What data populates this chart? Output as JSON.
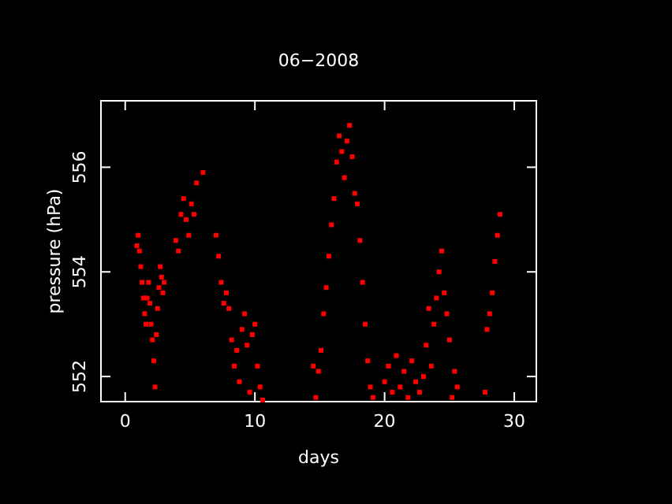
{
  "chart_data": {
    "type": "scatter",
    "title": "06−2008",
    "xlabel": "days",
    "ylabel": "pressure (hPa)",
    "xlim": [
      -1.87,
      31.7
    ],
    "ylim": [
      551.52,
      557.27
    ],
    "xticks": [
      0,
      10,
      20,
      30
    ],
    "yticks": [
      552,
      554,
      556
    ],
    "marker": "square",
    "grid": false,
    "series": [
      {
        "color": "#ff0000",
        "x": [
          0.9,
          1.0,
          1.1,
          1.2,
          1.3,
          1.4,
          1.5,
          1.6,
          1.7,
          1.8,
          1.9,
          2.0,
          2.1,
          2.2,
          2.3,
          2.4,
          2.5,
          2.6,
          2.7,
          2.8,
          2.9,
          3.0,
          3.9,
          4.1,
          4.3,
          4.5,
          4.7,
          4.9,
          5.1,
          5.3,
          5.5,
          6.0,
          7.0,
          7.2,
          7.4,
          7.6,
          7.8,
          8.0,
          8.2,
          8.4,
          8.6,
          8.8,
          9.0,
          9.2,
          9.4,
          9.6,
          9.8,
          10.0,
          10.2,
          10.4,
          10.6,
          14.5,
          14.7,
          14.9,
          15.1,
          15.3,
          15.5,
          15.7,
          15.9,
          16.1,
          16.3,
          16.5,
          16.7,
          16.9,
          17.1,
          17.3,
          17.5,
          17.7,
          17.9,
          18.1,
          18.3,
          18.5,
          18.7,
          18.9,
          19.1,
          20.0,
          20.3,
          20.6,
          20.9,
          21.2,
          21.5,
          21.8,
          22.1,
          22.4,
          22.7,
          23.0,
          23.2,
          23.4,
          23.6,
          23.8,
          24.0,
          24.2,
          24.4,
          24.6,
          24.8,
          25.0,
          25.2,
          25.4,
          25.6,
          27.75,
          27.9,
          28.1,
          28.3,
          28.5,
          28.7,
          28.9
        ],
        "values": [
          554.5,
          554.7,
          554.4,
          554.1,
          553.8,
          553.5,
          553.2,
          553.0,
          553.5,
          553.8,
          553.4,
          553.0,
          552.7,
          552.3,
          551.8,
          552.8,
          553.3,
          553.7,
          554.1,
          553.9,
          553.6,
          553.8,
          554.6,
          554.4,
          555.1,
          555.4,
          555.0,
          554.7,
          555.3,
          555.1,
          555.7,
          555.9,
          554.7,
          554.3,
          553.8,
          553.4,
          553.6,
          553.3,
          552.7,
          552.2,
          552.5,
          551.9,
          552.9,
          553.2,
          552.6,
          551.7,
          552.8,
          553.0,
          552.2,
          551.8,
          551.55,
          552.2,
          551.6,
          552.1,
          552.5,
          553.2,
          553.7,
          554.3,
          554.9,
          555.4,
          556.1,
          556.6,
          556.3,
          555.8,
          556.5,
          556.8,
          556.2,
          555.5,
          555.3,
          554.6,
          553.8,
          553.0,
          552.3,
          551.8,
          551.6,
          551.9,
          552.2,
          551.7,
          552.4,
          551.8,
          552.1,
          551.6,
          552.3,
          551.9,
          551.7,
          552.0,
          552.6,
          553.3,
          552.2,
          553.0,
          553.5,
          554.0,
          554.4,
          553.6,
          553.2,
          552.7,
          551.6,
          552.1,
          551.8,
          551.7,
          552.9,
          553.2,
          553.6,
          554.2,
          554.7,
          555.1
        ]
      }
    ]
  }
}
